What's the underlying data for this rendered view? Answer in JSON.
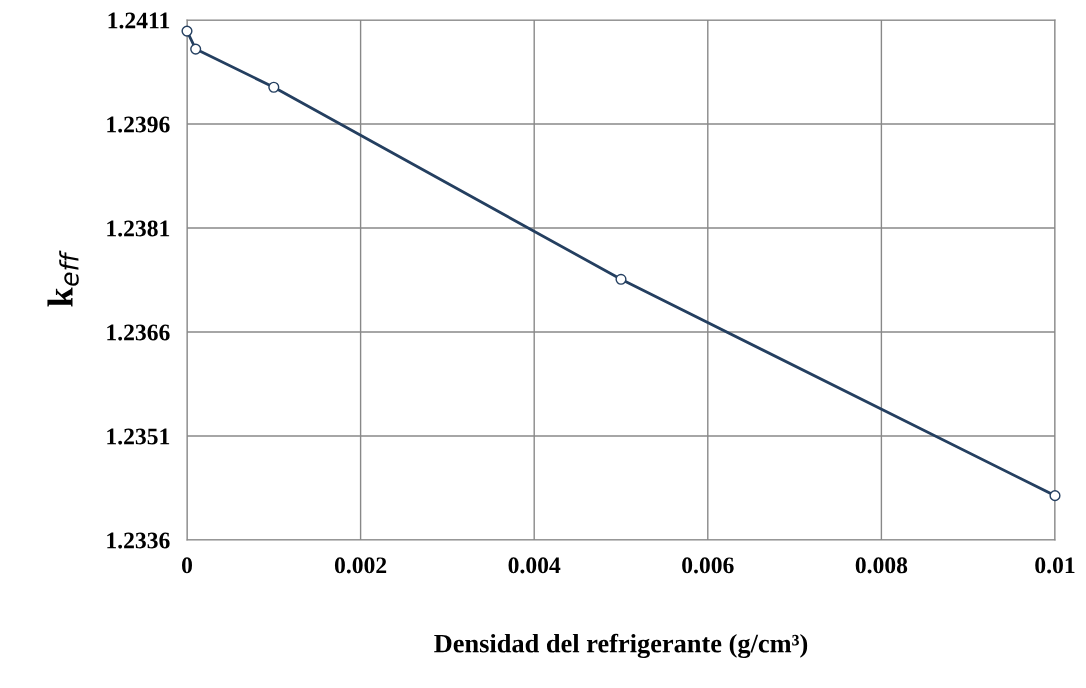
{
  "chart_data": {
    "type": "line",
    "xlabel": "Densidad del refrigerante (g/cm³)",
    "ylabel": "k$_{eff}$",
    "x": [
      0,
      0.0001,
      0.001,
      0.005,
      0.01
    ],
    "series": [
      {
        "color": "#243f60",
        "values": [
          1.24094,
          1.24068,
          1.24013,
          1.23736,
          1.23424
        ]
      }
    ],
    "xlim": [
      0,
      0.01
    ],
    "xticks": [
      0,
      0.002,
      0.004,
      0.006,
      0.008,
      0.01
    ],
    "ylim": [
      1.2336,
      1.2411
    ],
    "yticks": [
      {
        "value": 1.2336,
        "label": "1.2336"
      },
      {
        "value": 1.2351,
        "label": "1.2351"
      },
      {
        "value": 1.2366,
        "label": "1.2366"
      },
      {
        "value": 1.2381,
        "label": "1.2381"
      },
      {
        "value": 1.2396,
        "label": "1.2396"
      },
      {
        "value": 1.2411,
        "label": "1.2411"
      }
    ],
    "grid": true,
    "marker": "circle",
    "line_style": "solid",
    "legend": false
  }
}
